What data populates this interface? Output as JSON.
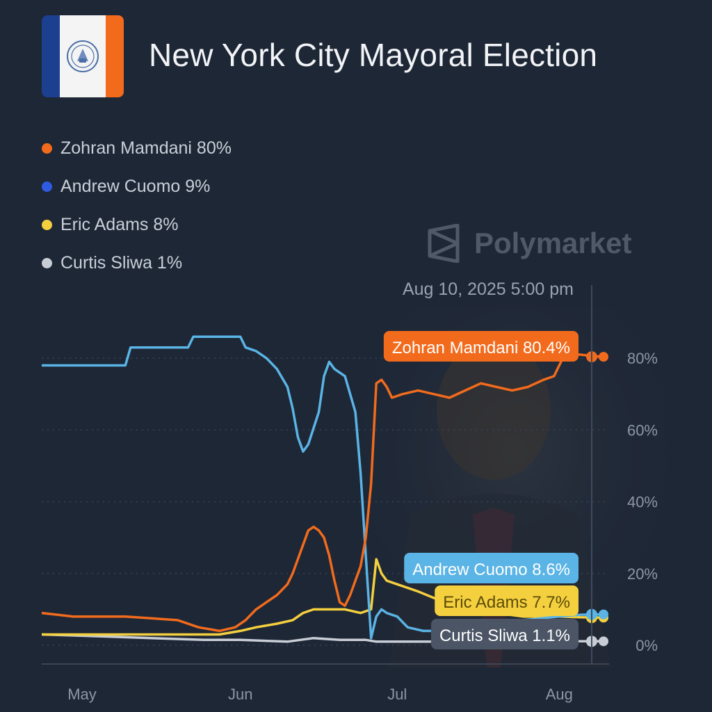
{
  "header": {
    "title": "New York City Mayoral Election",
    "brand": "Polymarket",
    "hover_date": "Aug 10, 2025 5:00 pm"
  },
  "legend": [
    {
      "label": "Zohran Mamdani 80%",
      "color": "#f26b1d"
    },
    {
      "label": "Andrew Cuomo 9%",
      "color": "#2f5be0"
    },
    {
      "label": "Eric Adams 8%",
      "color": "#f4d03f"
    },
    {
      "label": "Curtis Sliwa 1%",
      "color": "#c9ced6"
    }
  ],
  "chart_data": {
    "type": "line",
    "x_unit": "2025 date",
    "x_ticks": [
      {
        "label": "May",
        "x": "2025-05-01"
      },
      {
        "label": "Jun",
        "x": "2025-06-01"
      },
      {
        "label": "Jul",
        "x": "2025-07-01"
      },
      {
        "label": "Aug",
        "x": "2025-08-01"
      }
    ],
    "y_ticks": [
      {
        "label": "0%",
        "value": 0
      },
      {
        "label": "20%",
        "value": 20
      },
      {
        "label": "40%",
        "value": 40
      },
      {
        "label": "60%",
        "value": 60
      },
      {
        "label": "80%",
        "value": 80
      }
    ],
    "xlim": [
      "2025-04-24",
      "2025-08-10"
    ],
    "ylim": [
      0,
      90
    ],
    "grid": "dotted horizontal",
    "series": [
      {
        "name": "Zohran Mamdani",
        "color": "#f26b1d",
        "tag": "Zohran Mamdani 80.4%",
        "points": [
          [
            "2025-04-24",
            9
          ],
          [
            "2025-04-27",
            8.5
          ],
          [
            "2025-04-30",
            8
          ],
          [
            "2025-05-05",
            8
          ],
          [
            "2025-05-10",
            8
          ],
          [
            "2025-05-15",
            7.5
          ],
          [
            "2025-05-20",
            7
          ],
          [
            "2025-05-24",
            5
          ],
          [
            "2025-05-28",
            4
          ],
          [
            "2025-05-31",
            5
          ],
          [
            "2025-06-02",
            7
          ],
          [
            "2025-06-04",
            10
          ],
          [
            "2025-06-06",
            12
          ],
          [
            "2025-06-08",
            14
          ],
          [
            "2025-06-10",
            17
          ],
          [
            "2025-06-11",
            20
          ],
          [
            "2025-06-12",
            24
          ],
          [
            "2025-06-13",
            28
          ],
          [
            "2025-06-14",
            32
          ],
          [
            "2025-06-15",
            33
          ],
          [
            "2025-06-16",
            32
          ],
          [
            "2025-06-17",
            30
          ],
          [
            "2025-06-18",
            25
          ],
          [
            "2025-06-19",
            18
          ],
          [
            "2025-06-20",
            12
          ],
          [
            "2025-06-21",
            11
          ],
          [
            "2025-06-22",
            14
          ],
          [
            "2025-06-23",
            18
          ],
          [
            "2025-06-24",
            22
          ],
          [
            "2025-06-25",
            30
          ],
          [
            "2025-06-26",
            45
          ],
          [
            "2025-06-27",
            73
          ],
          [
            "2025-06-28",
            74
          ],
          [
            "2025-06-29",
            72
          ],
          [
            "2025-06-30",
            69
          ],
          [
            "2025-07-02",
            70
          ],
          [
            "2025-07-05",
            71
          ],
          [
            "2025-07-08",
            70
          ],
          [
            "2025-07-11",
            69
          ],
          [
            "2025-07-14",
            71
          ],
          [
            "2025-07-17",
            73
          ],
          [
            "2025-07-20",
            72
          ],
          [
            "2025-07-23",
            71
          ],
          [
            "2025-07-26",
            72
          ],
          [
            "2025-07-29",
            74
          ],
          [
            "2025-07-31",
            75
          ],
          [
            "2025-08-01",
            78
          ],
          [
            "2025-08-02",
            81
          ],
          [
            "2025-08-05",
            81
          ],
          [
            "2025-08-08",
            80.5
          ],
          [
            "2025-08-10",
            80.4
          ]
        ]
      },
      {
        "name": "Andrew Cuomo",
        "color": "#5ab4e5",
        "tag": "Andrew Cuomo 8.6%",
        "points": [
          [
            "2025-04-24",
            78
          ],
          [
            "2025-05-10",
            78
          ],
          [
            "2025-05-11",
            83
          ],
          [
            "2025-05-22",
            83
          ],
          [
            "2025-05-23",
            86
          ],
          [
            "2025-06-01",
            86
          ],
          [
            "2025-06-02",
            83
          ],
          [
            "2025-06-04",
            82
          ],
          [
            "2025-06-06",
            80
          ],
          [
            "2025-06-08",
            77
          ],
          [
            "2025-06-10",
            72
          ],
          [
            "2025-06-11",
            66
          ],
          [
            "2025-06-12",
            58
          ],
          [
            "2025-06-13",
            54
          ],
          [
            "2025-06-14",
            56
          ],
          [
            "2025-06-16",
            65
          ],
          [
            "2025-06-17",
            75
          ],
          [
            "2025-06-18",
            79
          ],
          [
            "2025-06-19",
            77
          ],
          [
            "2025-06-21",
            75
          ],
          [
            "2025-06-22",
            70
          ],
          [
            "2025-06-23",
            65
          ],
          [
            "2025-06-24",
            48
          ],
          [
            "2025-06-25",
            25
          ],
          [
            "2025-06-26",
            2
          ],
          [
            "2025-06-27",
            8
          ],
          [
            "2025-06-28",
            10
          ],
          [
            "2025-06-29",
            9
          ],
          [
            "2025-07-01",
            8
          ],
          [
            "2025-07-03",
            5
          ],
          [
            "2025-07-06",
            4
          ],
          [
            "2025-07-10",
            4
          ],
          [
            "2025-07-15",
            5
          ],
          [
            "2025-07-20",
            6
          ],
          [
            "2025-07-25",
            7
          ],
          [
            "2025-08-01",
            8
          ],
          [
            "2025-08-05",
            8.5
          ],
          [
            "2025-08-10",
            8.6
          ]
        ]
      },
      {
        "name": "Eric Adams",
        "color": "#f4d03f",
        "tag": "Eric Adams 7.7%",
        "points": [
          [
            "2025-04-24",
            3
          ],
          [
            "2025-05-10",
            3
          ],
          [
            "2025-05-20",
            3
          ],
          [
            "2025-05-28",
            3
          ],
          [
            "2025-06-01",
            4
          ],
          [
            "2025-06-04",
            5
          ],
          [
            "2025-06-08",
            6
          ],
          [
            "2025-06-11",
            7
          ],
          [
            "2025-06-13",
            9
          ],
          [
            "2025-06-15",
            10
          ],
          [
            "2025-06-18",
            10
          ],
          [
            "2025-06-21",
            10
          ],
          [
            "2025-06-24",
            9
          ],
          [
            "2025-06-26",
            10
          ],
          [
            "2025-06-27",
            24
          ],
          [
            "2025-06-28",
            20
          ],
          [
            "2025-06-29",
            18
          ],
          [
            "2025-07-01",
            17
          ],
          [
            "2025-07-05",
            15
          ],
          [
            "2025-07-10",
            12
          ],
          [
            "2025-07-15",
            10
          ],
          [
            "2025-07-20",
            9
          ],
          [
            "2025-07-25",
            8
          ],
          [
            "2025-08-01",
            8
          ],
          [
            "2025-08-05",
            7.8
          ],
          [
            "2025-08-10",
            7.7
          ]
        ]
      },
      {
        "name": "Curtis Sliwa",
        "color": "#c9ced6",
        "tag": "Curtis Sliwa 1.1%",
        "points": [
          [
            "2025-04-24",
            3
          ],
          [
            "2025-05-05",
            2.5
          ],
          [
            "2025-05-15",
            2
          ],
          [
            "2025-05-25",
            1.5
          ],
          [
            "2025-06-01",
            1.5
          ],
          [
            "2025-06-10",
            1
          ],
          [
            "2025-06-15",
            2
          ],
          [
            "2025-06-20",
            1.5
          ],
          [
            "2025-06-25",
            1.5
          ],
          [
            "2025-06-27",
            1
          ],
          [
            "2025-07-05",
            1
          ],
          [
            "2025-07-15",
            1
          ],
          [
            "2025-07-25",
            1.2
          ],
          [
            "2025-08-05",
            1.1
          ],
          [
            "2025-08-10",
            1.1
          ]
        ]
      }
    ]
  }
}
